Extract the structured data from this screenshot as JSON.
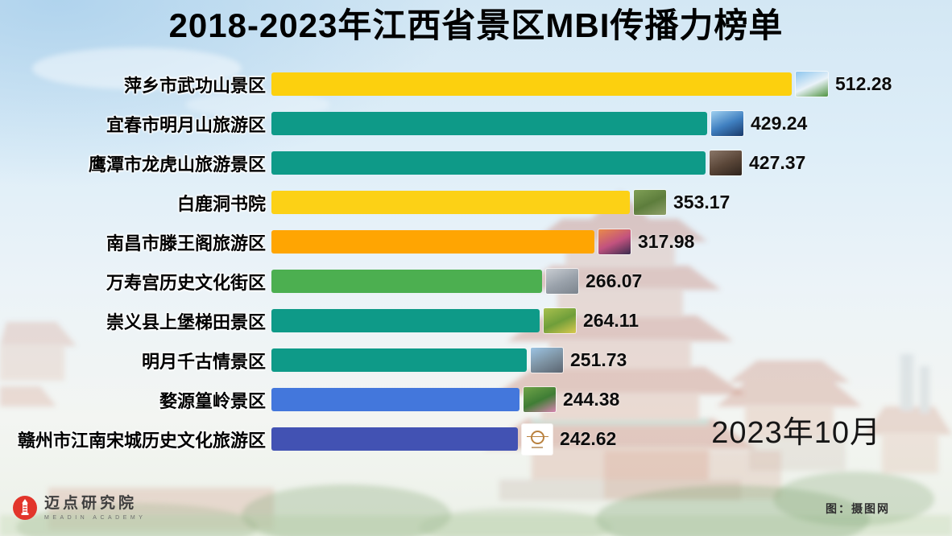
{
  "chart_data": {
    "type": "bar",
    "orientation": "horizontal",
    "title": "2018-2023年江西省景区MBI传播力榜单",
    "date_label": "2023年10月",
    "categories": [
      "萍乡市武功山景区",
      "宜春市明月山旅游区",
      "鹰潭市龙虎山旅游景区",
      "白鹿洞书院",
      "南昌市滕王阁旅游区",
      "万寿宫历史文化街区",
      "崇义县上堡梯田景区",
      "明月千古情景区",
      "婺源篁岭景区",
      "赣州市江南宋城历史文化旅游区"
    ],
    "values": [
      512.28,
      429.24,
      427.37,
      353.17,
      317.98,
      266.07,
      264.11,
      251.73,
      244.38,
      242.62
    ],
    "bar_colors": [
      "#FCD00E",
      "#0E9A88",
      "#0E9A88",
      "#FCD116",
      "#FFA502",
      "#4CAF50",
      "#0E9A88",
      "#0E9A88",
      "#4377DC",
      "#4252B3"
    ],
    "thumb_types": [
      "photo",
      "photo",
      "photo",
      "photo",
      "photo",
      "photo",
      "photo",
      "photo",
      "photo",
      "logo"
    ],
    "thumb_names": [
      "wugongshan-mountain-photo",
      "mingyueshan-night-photo",
      "longhushan-cliff-photo",
      "bailudong-academy-aerial-photo",
      "tengwang-pavilion-sunset-photo",
      "wanshougong-rooftops-photo",
      "shangbao-terraces-photo",
      "mingyue-qianguqing-photo",
      "wuyuan-huangling-flowers-photo",
      "jiangnan-songcheng-gold-seal-logo"
    ],
    "thumb_colors": [
      [
        "#8ec6ee",
        "#e9f2f8",
        "#4f9340"
      ],
      [
        "#9fd0f0",
        "#3f7fc0",
        "#1a3a6a"
      ],
      [
        "#8a7668",
        "#5a4638",
        "#2e241d"
      ],
      [
        "#7f9f56",
        "#5d7d3c",
        "#8fa06a"
      ],
      [
        "#e98a4a",
        "#c2527f",
        "#3a2c4e"
      ],
      [
        "#c9cdd2",
        "#9aa2ab",
        "#7c848d"
      ],
      [
        "#a9c04e",
        "#6f9e3a",
        "#d9c94e"
      ],
      [
        "#9cc4e4",
        "#7d92a2",
        "#5a6470"
      ],
      [
        "#6fa348",
        "#3f7d35",
        "#d884b0"
      ],
      [
        "#ffffff",
        "#b9813e",
        "#ffffff"
      ]
    ],
    "legend": false,
    "grid": false,
    "xlim": [
      0,
      520
    ]
  },
  "footer": {
    "brand_name": "迈点研究院",
    "brand_sub": "MEADIN ACADEMY",
    "credit": "图：摄图网",
    "brand_color": "#E2352B"
  }
}
